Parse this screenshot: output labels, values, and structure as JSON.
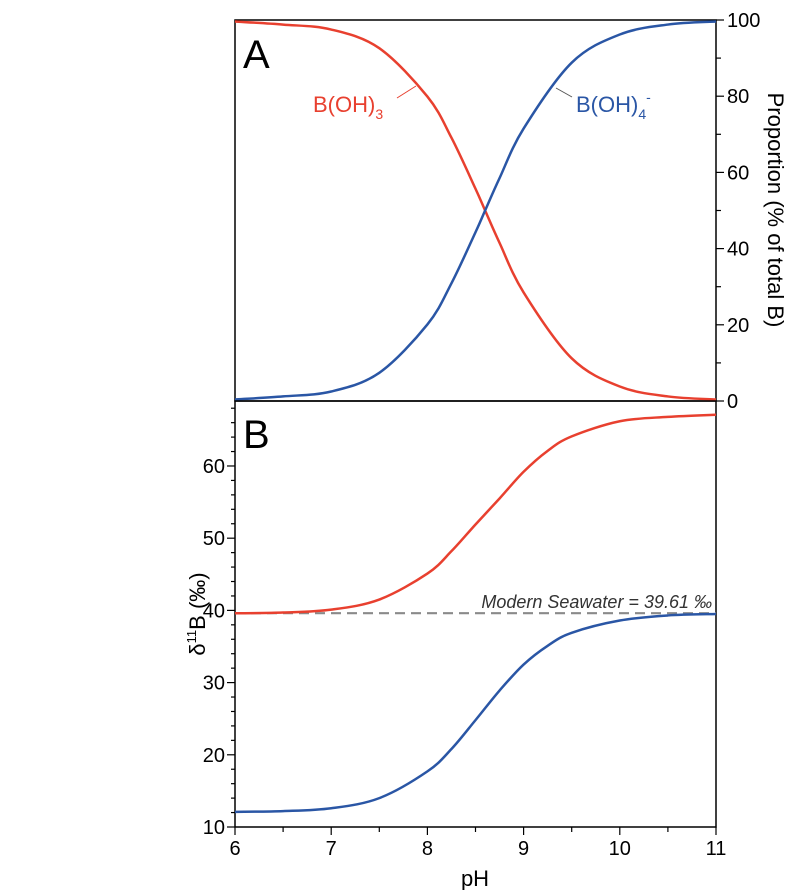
{
  "chart_data": [
    {
      "panel_label": "A",
      "type": "line",
      "xlim": [
        6,
        11
      ],
      "ylim": [
        0,
        100
      ],
      "yaxis_side": "right",
      "ylabel": "Proportion (% of total B)",
      "yticks": [
        "0",
        "20",
        "40",
        "60",
        "80",
        "100"
      ],
      "x": [
        6.0,
        6.5,
        7.0,
        7.5,
        8.0,
        8.25,
        8.5,
        8.6,
        8.75,
        9.0,
        9.5,
        10.0,
        10.5,
        11.0
      ],
      "series": [
        {
          "name_base": "B(OH)",
          "name_sub": "3",
          "name_sup": "",
          "color": "#e8402f",
          "values": [
            99.6,
            98.8,
            97.5,
            92.6,
            79.9,
            69.1,
            55.7,
            50.0,
            41.5,
            28.5,
            11.2,
            3.8,
            1.2,
            0.4
          ]
        },
        {
          "name_base": "B(OH)",
          "name_sub": "4",
          "name_sup": "-",
          "color": "#2a56a5",
          "values": [
            0.4,
            1.2,
            2.5,
            7.4,
            20.1,
            30.9,
            44.3,
            50.0,
            58.5,
            71.5,
            88.8,
            96.2,
            98.8,
            99.6
          ]
        }
      ]
    },
    {
      "panel_label": "B",
      "type": "line",
      "xlim": [
        6,
        11
      ],
      "ylim": [
        10,
        69
      ],
      "yaxis_side": "left",
      "xlabel": "pH",
      "ylabel_base": "δ",
      "ylabel_sup": "11",
      "ylabel_rest": "B (‰)",
      "xticks": [
        "6",
        "7",
        "8",
        "9",
        "10",
        "11"
      ],
      "yticks": [
        "10",
        "20",
        "30",
        "40",
        "50",
        "60"
      ],
      "x": [
        6.0,
        6.5,
        7.0,
        7.5,
        8.0,
        8.25,
        8.5,
        8.75,
        9.0,
        9.25,
        9.5,
        10.0,
        10.5,
        11.0
      ],
      "series": [
        {
          "name": "",
          "color": "#e8402f",
          "values": [
            39.6,
            39.7,
            40.1,
            41.5,
            45.1,
            48.2,
            51.9,
            55.5,
            59.2,
            62.1,
            64.1,
            66.2,
            66.8,
            67.1
          ]
        },
        {
          "name": "",
          "color": "#2a56a5",
          "values": [
            12.1,
            12.2,
            12.6,
            14.0,
            17.7,
            20.8,
            24.8,
            28.9,
            32.5,
            35.1,
            36.9,
            38.6,
            39.3,
            39.5
          ]
        }
      ],
      "reference_line": {
        "value": 39.61,
        "label": "Modern Seawater = 39.61 ‰",
        "color": "#8a8a8a"
      }
    }
  ]
}
